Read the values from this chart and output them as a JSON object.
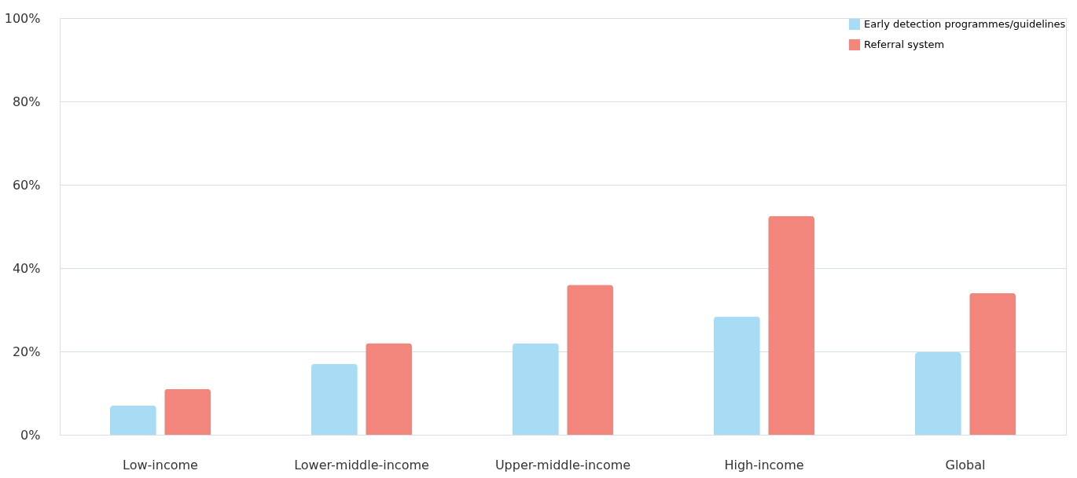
{
  "chart_data": {
    "type": "bar",
    "categories": [
      "Low-income",
      "Lower-middle-income",
      "Upper-middle-income",
      "High-income",
      "Global"
    ],
    "series": [
      {
        "name": "Early detection programmes/guidelines",
        "color": "#a8dcf5",
        "values": [
          7,
          17,
          22,
          28.4,
          19.8
        ]
      },
      {
        "name": "Referral system",
        "color": "#f2857c",
        "values": [
          11,
          22,
          36,
          52.5,
          34
        ]
      }
    ],
    "ylim": [
      0,
      100
    ],
    "yticks": [
      {
        "value": 0,
        "label": "0%"
      },
      {
        "value": 20,
        "label": "20%"
      },
      {
        "value": 40,
        "label": "40%"
      },
      {
        "value": 60,
        "label": "60%"
      },
      {
        "value": 80,
        "label": "80%"
      },
      {
        "value": 100,
        "label": "100%"
      }
    ],
    "grid": "y",
    "legend": "top right"
  }
}
